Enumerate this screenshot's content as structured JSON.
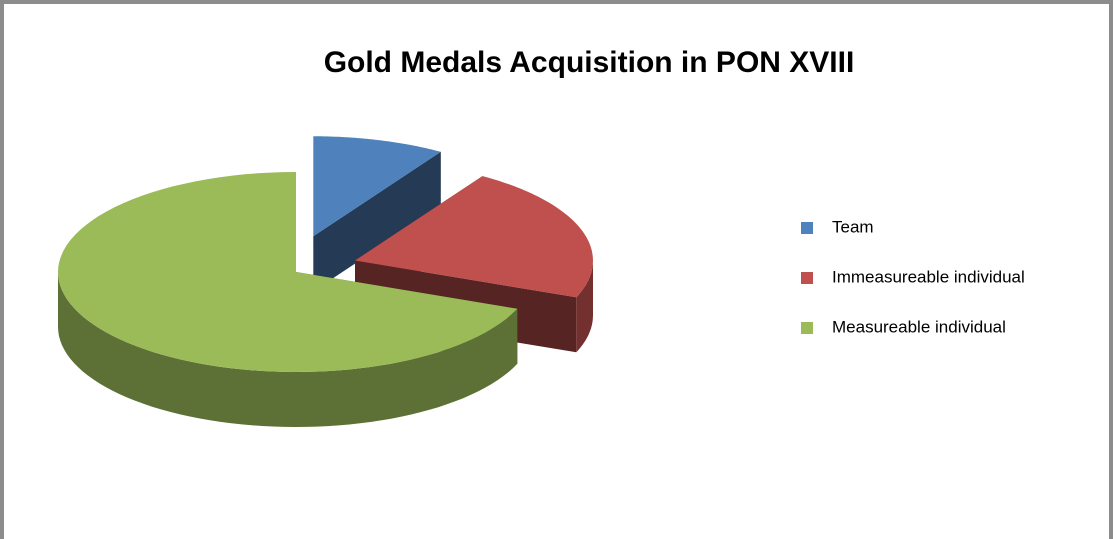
{
  "chart_data": {
    "type": "pie",
    "title": "Gold Medals Acquisition in PON XVIII",
    "categories": [
      "Team",
      "Immeasureable individual",
      "Measureable individual"
    ],
    "values": [
      9,
      22,
      69
    ],
    "colors": [
      "#4f81bd",
      "#c0504d",
      "#9bbb59"
    ],
    "exploded": [
      true,
      true,
      false
    ],
    "legend": "right"
  }
}
